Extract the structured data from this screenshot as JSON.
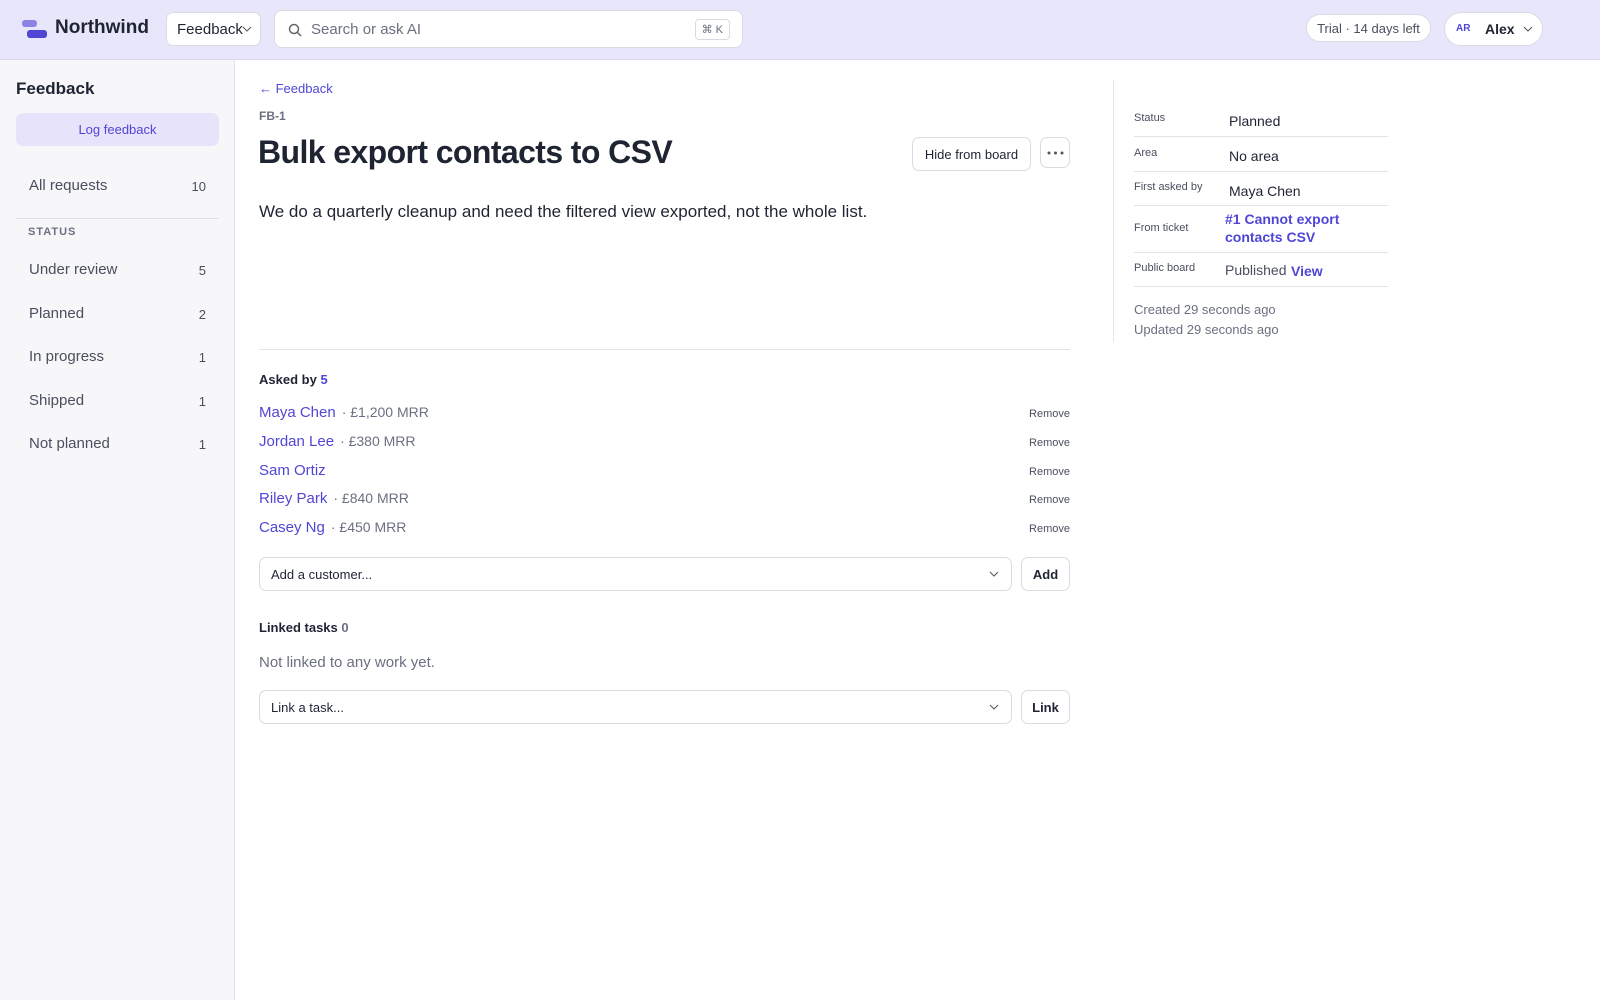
{
  "topbar": {
    "brand": "Northwind",
    "workspace": "Feedback",
    "search_placeholder": "Search or ask AI",
    "shortcut": "⌘ K",
    "trial": "Trial · 14 days left",
    "user_initials": "AR",
    "user_name": "Alex"
  },
  "sidebar": {
    "title": "Feedback",
    "action": "Log feedback",
    "all": {
      "label": "All requests",
      "count": 10
    },
    "section": "STATUS",
    "items": [
      {
        "label": "Under review",
        "count": 5
      },
      {
        "label": "Planned",
        "count": 2
      },
      {
        "label": "In progress",
        "count": 1
      },
      {
        "label": "Shipped",
        "count": 1
      },
      {
        "label": "Not planned",
        "count": 1
      }
    ]
  },
  "detail": {
    "back": "← Feedback",
    "id": "FB-1",
    "title": "Bulk export contacts to CSV",
    "hide_button": "Hide from board",
    "description": "We do a quarterly cleanup and need the filtered view exported, not the whole list.",
    "asked_by": {
      "label": "Asked by",
      "count": 5,
      "remove": "Remove",
      "customers": [
        {
          "name": "Maya Chen",
          "mrr": "· £1,200 MRR"
        },
        {
          "name": "Jordan Lee",
          "mrr": "· £380 MRR"
        },
        {
          "name": "Sam Ortiz",
          "mrr": null
        },
        {
          "name": "Riley Park",
          "mrr": "· £840 MRR"
        },
        {
          "name": "Casey Ng",
          "mrr": "· £450 MRR"
        }
      ],
      "placeholder": "Add a customer...",
      "button": "Add"
    },
    "linked_tasks": {
      "label": "Linked tasks",
      "count": 0,
      "empty": "Not linked to any work yet.",
      "placeholder": "Link a task...",
      "button": "Link"
    }
  },
  "properties": {
    "rows": [
      {
        "label": "Status",
        "value": "Planned"
      },
      {
        "label": "Area",
        "value": "No area"
      },
      {
        "label": "First asked by",
        "value": "Maya Chen"
      },
      {
        "label": "From ticket",
        "link": "#1 Cannot export contacts CSV"
      },
      {
        "label": "Public board",
        "value": "Published",
        "link": "View"
      }
    ],
    "created": "Created 29 seconds ago",
    "updated": "Updated 29 seconds ago"
  }
}
